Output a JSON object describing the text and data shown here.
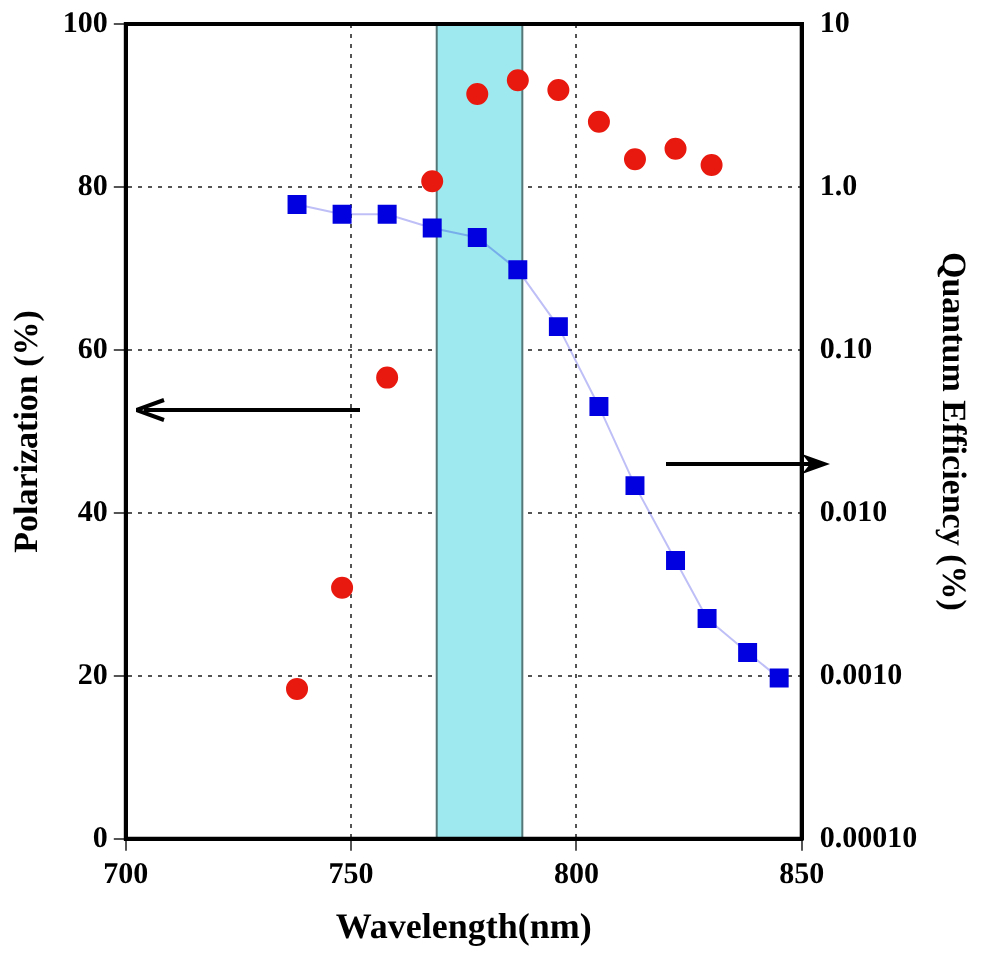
{
  "chart_data": {
    "type": "scatter",
    "xlabel": "Wavelength(nm)",
    "ylabel": "Polarization (%)",
    "y2label": "Quantum Efficiency (%)",
    "xlim": [
      700,
      850
    ],
    "xticks": [
      700,
      750,
      800,
      850
    ],
    "ylim": [
      0,
      100
    ],
    "yticks": [
      0,
      20,
      40,
      60,
      80,
      100
    ],
    "y2lim": [
      0.0001,
      10
    ],
    "y2ticks": [
      10,
      {
        "value": 1,
        "label": "1.0"
      },
      {
        "value": 0.1,
        "label": "0.10"
      },
      {
        "value": 0.01,
        "label": "0.010"
      },
      {
        "value": 0.001,
        "label": "0.0010"
      },
      {
        "value": 0.0001,
        "label": "0.00010"
      }
    ],
    "log": "y2",
    "grid": true,
    "legend": false,
    "bands": [
      {
        "axis": "x",
        "from": 769,
        "to": 788,
        "color": "#9ee9ef"
      }
    ],
    "series": [
      {
        "type": "scatter",
        "marker": "circle",
        "color": "#e8190f",
        "x": [
          738,
          748,
          758,
          768,
          778,
          787,
          796,
          805,
          813,
          822,
          830
        ],
        "values": [
          18.4,
          30.8,
          56.6,
          80.7,
          91.4,
          93.1,
          91.9,
          88.0,
          83.4,
          84.7,
          82.7
        ]
      },
      {
        "type": "line",
        "marker": "square",
        "axis": "y2",
        "line_style": "solid",
        "color": "#0000e0",
        "x": [
          738,
          748,
          758,
          768,
          778,
          787,
          796,
          805,
          813,
          822,
          829,
          838,
          845
        ],
        "values": [
          0.78,
          0.68,
          0.68,
          0.56,
          0.49,
          0.31,
          0.139,
          0.045,
          0.0147,
          0.0051,
          0.00225,
          0.00139,
          0.00097
        ]
      }
    ]
  }
}
